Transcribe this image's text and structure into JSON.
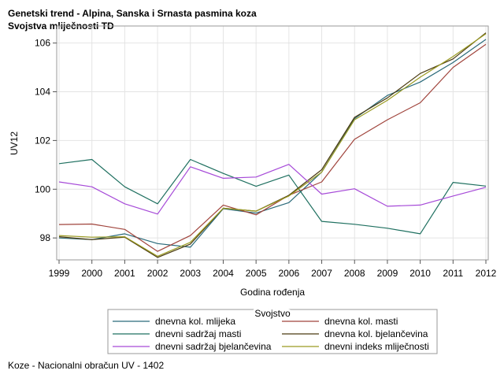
{
  "header": {
    "title": "Genetski trend - Alpina, Sanska i Srnasta pasmina koza",
    "subtitle": "Svojstva mliječnosti TD"
  },
  "footer": {
    "note": "Koze - Nacionalni obračun UV - 1402"
  },
  "chart_data": {
    "type": "line",
    "title": "Genetski trend - Alpina, Sanska i Srnasta pasmina koza",
    "subtitle": "Svojstva mliječnosti TD",
    "xlabel": "Godina rođenja",
    "ylabel": "UV12",
    "x": [
      1999,
      2000,
      2001,
      2002,
      2003,
      2004,
      2005,
      2006,
      2007,
      2008,
      2009,
      2010,
      2011,
      2012
    ],
    "xlim": [
      1999,
      2012
    ],
    "ylim": [
      97.1,
      106.7
    ],
    "yticks": [
      98,
      100,
      102,
      104,
      106
    ],
    "grid": true,
    "legend": {
      "title": "Svojstvo",
      "position": "bottom"
    },
    "series": [
      {
        "name": "dnevna kol. mlijeka",
        "color": "#2a6a7a",
        "values": [
          98.0,
          97.93,
          98.17,
          97.77,
          97.62,
          99.2,
          99.02,
          99.45,
          100.7,
          102.9,
          103.85,
          104.4,
          105.2,
          106.15
        ]
      },
      {
        "name": "dnevna kol. masti",
        "color": "#a0443c",
        "values": [
          98.55,
          98.57,
          98.35,
          97.45,
          98.1,
          99.35,
          98.95,
          99.75,
          100.3,
          102.05,
          102.85,
          103.55,
          105.0,
          105.95
        ]
      },
      {
        "name": "dnevni sadržaj masti",
        "color": "#1f7060",
        "values": [
          101.05,
          101.22,
          100.1,
          99.4,
          101.22,
          100.65,
          100.12,
          100.58,
          98.68,
          98.56,
          98.4,
          98.17,
          100.28,
          100.13
        ]
      },
      {
        "name": "dnevna kol. bjelančevina",
        "color": "#4a3a10",
        "values": [
          98.05,
          97.93,
          98.03,
          97.2,
          97.75,
          99.22,
          99.1,
          99.75,
          100.8,
          102.95,
          103.75,
          104.75,
          105.35,
          106.42
        ]
      },
      {
        "name": "dnevni sadržaj bjelančevina",
        "color": "#a64ad8",
        "values": [
          100.3,
          100.1,
          99.4,
          98.98,
          100.92,
          100.45,
          100.5,
          101.02,
          99.8,
          100.02,
          99.3,
          99.35,
          99.72,
          100.08
        ]
      },
      {
        "name": "dnevni indeks mliječnosti",
        "color": "#9a9a20",
        "values": [
          98.1,
          98.03,
          98.05,
          97.25,
          97.82,
          99.22,
          99.1,
          99.72,
          100.7,
          102.85,
          103.65,
          104.6,
          105.45,
          106.38
        ]
      }
    ]
  }
}
